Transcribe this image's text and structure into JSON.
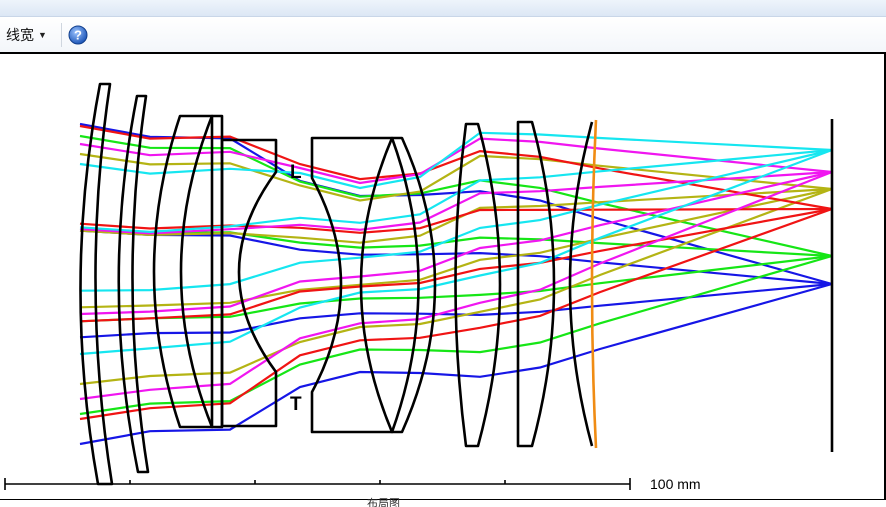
{
  "toolbar": {
    "wireframe_label": "线宽",
    "help_glyph": "?"
  },
  "diagram": {
    "stop_markers": [
      "L",
      "T"
    ],
    "scale_label": "100 mm"
  },
  "footer": {
    "caption": "布局图"
  },
  "colors": {
    "ray_blue": "#1616e6",
    "ray_green": "#16e616",
    "ray_red": "#f01414",
    "ray_cyan": "#16e6f0",
    "ray_magenta": "#f016f0",
    "ray_olive": "#b4b414",
    "lens_outline": "#000000",
    "filter_orange": "#f08c14",
    "help_blue": "#2b6fd6"
  }
}
